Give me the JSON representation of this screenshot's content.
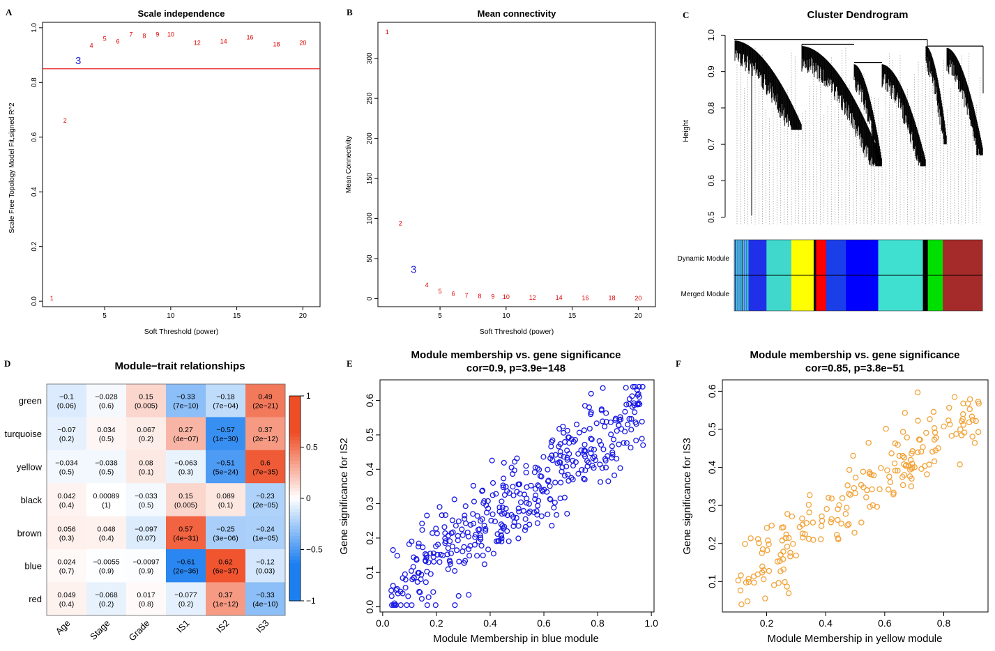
{
  "colors": {
    "axis": "#000000",
    "red_label": "#e00000",
    "blue_highlight": "#2222dd",
    "threshold_line": "#e53030",
    "blue_points": "#1a1ae6",
    "orange_points": "#f2a33a",
    "heat_neg": "#1c7ff0",
    "heat_mid": "#ffffff",
    "heat_pos": "#ef4d26"
  },
  "chart_data": [
    {
      "id": "A",
      "type": "scatter",
      "panel_label": "A",
      "title": "Scale independence",
      "xlabel": "Soft Threshold (power)",
      "ylabel": "Scale Free Topology Model Fit,signed R^2",
      "xlim": [
        0.3,
        21.3
      ],
      "ylim": [
        -0.02,
        1.02
      ],
      "xticks": [
        5,
        10,
        15,
        20
      ],
      "yticks": [
        0.0,
        0.2,
        0.4,
        0.6,
        0.8,
        1.0
      ],
      "ytick_labels": [
        "0.0",
        "0.2",
        "0.4",
        "0.6",
        "0.8",
        "1.0"
      ],
      "hline": 0.85,
      "highlight": "3",
      "points": [
        {
          "label": "1",
          "x": 1,
          "y": 0.01
        },
        {
          "label": "2",
          "x": 2,
          "y": 0.66
        },
        {
          "label": "3",
          "x": 3,
          "y": 0.875
        },
        {
          "label": "4",
          "x": 4,
          "y": 0.935
        },
        {
          "label": "5",
          "x": 5,
          "y": 0.96
        },
        {
          "label": "6",
          "x": 6,
          "y": 0.95
        },
        {
          "label": "7",
          "x": 7,
          "y": 0.975
        },
        {
          "label": "8",
          "x": 8,
          "y": 0.97
        },
        {
          "label": "9",
          "x": 9,
          "y": 0.975
        },
        {
          "label": "10",
          "x": 10,
          "y": 0.975
        },
        {
          "label": "12",
          "x": 12,
          "y": 0.945
        },
        {
          "label": "14",
          "x": 14,
          "y": 0.95
        },
        {
          "label": "16",
          "x": 16,
          "y": 0.965
        },
        {
          "label": "18",
          "x": 18,
          "y": 0.94
        },
        {
          "label": "20",
          "x": 20,
          "y": 0.945
        }
      ]
    },
    {
      "id": "B",
      "type": "scatter",
      "panel_label": "B",
      "title": "Mean connectivity",
      "xlabel": "Soft Threshold (power)",
      "ylabel": "Mean Connectivity",
      "xlim": [
        0.3,
        21.3
      ],
      "ylim": [
        -10,
        345
      ],
      "xticks": [
        5,
        10,
        15,
        20
      ],
      "yticks": [
        0,
        50,
        100,
        150,
        200,
        250,
        300
      ],
      "ytick_labels": [
        "0",
        "50",
        "100",
        "150",
        "200",
        "250",
        "300"
      ],
      "highlight": "3",
      "points": [
        {
          "label": "1",
          "x": 1,
          "y": 333
        },
        {
          "label": "2",
          "x": 2,
          "y": 94
        },
        {
          "label": "3",
          "x": 3,
          "y": 35
        },
        {
          "label": "4",
          "x": 4,
          "y": 17
        },
        {
          "label": "5",
          "x": 5,
          "y": 9
        },
        {
          "label": "6",
          "x": 6,
          "y": 6
        },
        {
          "label": "7",
          "x": 7,
          "y": 4
        },
        {
          "label": "8",
          "x": 8,
          "y": 3
        },
        {
          "label": "9",
          "x": 9,
          "y": 2.5
        },
        {
          "label": "10",
          "x": 10,
          "y": 2
        },
        {
          "label": "12",
          "x": 12,
          "y": 1.5
        },
        {
          "label": "14",
          "x": 14,
          "y": 1.2
        },
        {
          "label": "16",
          "x": 16,
          "y": 1
        },
        {
          "label": "18",
          "x": 18,
          "y": 0.8
        },
        {
          "label": "20",
          "x": 20,
          "y": 0.6
        }
      ]
    },
    {
      "id": "C",
      "type": "dendrogram",
      "panel_label": "C",
      "title": "Cluster Dendrogram",
      "ylabel": "Height",
      "ylim": [
        0.48,
        1.02
      ],
      "yticks": [
        0.5,
        0.6,
        0.7,
        0.8,
        0.9,
        1.0
      ],
      "ytick_labels": [
        "0.5",
        "0.6",
        "0.7",
        "0.8",
        "0.9",
        "1.0"
      ],
      "row_labels": [
        "Dynamic Module",
        "Merged Module"
      ],
      "modules": [
        {
          "name": "turquoise",
          "color": "#3fd1c8",
          "frac": 0.06
        },
        {
          "name": "blue",
          "color": "#2030e8",
          "frac": 0.07
        },
        {
          "name": "turquoise",
          "color": "#40d8cc",
          "frac": 0.1
        },
        {
          "name": "yellow",
          "color": "#ffff00",
          "frac": 0.09
        },
        {
          "name": "black",
          "color": "#111111",
          "frac": 0.01
        },
        {
          "name": "red",
          "color": "#ff0000",
          "frac": 0.04
        },
        {
          "name": "blue",
          "color": "#1a3ee8",
          "frac": 0.08
        },
        {
          "name": "blue",
          "color": "#0000ff",
          "frac": 0.13
        },
        {
          "name": "turquoise",
          "color": "#40e0d0",
          "frac": 0.18
        },
        {
          "name": "black",
          "color": "#000000",
          "frac": 0.02
        },
        {
          "name": "green",
          "color": "#00e000",
          "frac": 0.06
        },
        {
          "name": "brown",
          "color": "#a52a2a",
          "frac": 0.16
        }
      ]
    },
    {
      "id": "D",
      "type": "heatmap",
      "panel_label": "D",
      "title": "Module−trait relationships",
      "rows": [
        "green",
        "turquoise",
        "yellow",
        "black",
        "brown",
        "blue",
        "red"
      ],
      "cols": [
        "Age",
        "Stage",
        "Grade",
        "IS1",
        "IS2",
        "IS3"
      ],
      "values": [
        [
          -0.1,
          -0.028,
          0.15,
          -0.33,
          -0.18,
          0.49
        ],
        [
          -0.07,
          0.034,
          0.067,
          0.27,
          -0.57,
          0.37
        ],
        [
          -0.034,
          -0.038,
          0.08,
          -0.063,
          -0.51,
          0.6
        ],
        [
          0.042,
          0.00089,
          -0.033,
          0.15,
          0.089,
          -0.23
        ],
        [
          0.056,
          0.048,
          -0.097,
          0.57,
          -0.25,
          -0.24
        ],
        [
          0.024,
          -0.0055,
          -0.0097,
          -0.61,
          0.62,
          -0.12
        ],
        [
          0.049,
          -0.068,
          0.017,
          -0.077,
          0.37,
          -0.33
        ]
      ],
      "cell_text": [
        [
          "−0.1",
          "−0.028",
          "0.15",
          "−0.33",
          "−0.18",
          "0.49"
        ],
        [
          "−0.07",
          "0.034",
          "0.067",
          "0.27",
          "−0.57",
          "0.37"
        ],
        [
          "−0.034",
          "−0.038",
          "0.08",
          "−0.063",
          "−0.51",
          "0.6"
        ],
        [
          "0.042",
          "0.00089",
          "−0.033",
          "0.15",
          "0.089",
          "−0.23"
        ],
        [
          "0.056",
          "0.048",
          "−0.097",
          "0.57",
          "−0.25",
          "−0.24"
        ],
        [
          "0.024",
          "−0.0055",
          "−0.0097",
          "−0.61",
          "0.62",
          "−0.12"
        ],
        [
          "0.049",
          "−0.068",
          "0.017",
          "−0.077",
          "0.37",
          "−0.33"
        ]
      ],
      "pvalues": [
        [
          "(0.06)",
          "(0.6)",
          "(0.005)",
          "(7e−10)",
          "(7e−04)",
          "(2e−21)"
        ],
        [
          "(0.2)",
          "(0.5)",
          "(0.2)",
          "(4e−07)",
          "(1e−30)",
          "(2e−12)"
        ],
        [
          "(0.5)",
          "(0.5)",
          "(0.1)",
          "(0.3)",
          "(5e−24)",
          "(7e−35)"
        ],
        [
          "(0.4)",
          "(1)",
          "(0.5)",
          "(0.005)",
          "(0.1)",
          "(2e−05)"
        ],
        [
          "(0.3)",
          "(0.4)",
          "(0.07)",
          "(4e−31)",
          "(3e−06)",
          "(1e−05)"
        ],
        [
          "(0.7)",
          "(0.9)",
          "(0.9)",
          "(2e−36)",
          "(6e−37)",
          "(0.03)"
        ],
        [
          "(0.4)",
          "(0.2)",
          "(0.8)",
          "(0.2)",
          "(1e−12)",
          "(4e−10)"
        ]
      ],
      "colorbar_ticks": [
        1,
        0.5,
        0,
        -0.5,
        -1
      ],
      "colorbar_labels": [
        "1",
        "0.5",
        "0",
        "−0.5",
        "−1"
      ]
    },
    {
      "id": "E",
      "type": "scatter",
      "panel_label": "E",
      "title": "Module membership vs. gene significance",
      "subtitle": "cor=0.9, p=3.9e−148",
      "xlabel": "Module Membership in blue module",
      "ylabel": "Gene significance for IS2",
      "xlim": [
        -0.01,
        1.01
      ],
      "ylim": [
        -0.015,
        0.66
      ],
      "xticks": [
        0.0,
        0.2,
        0.4,
        0.6,
        0.8,
        1.0
      ],
      "xtick_labels": [
        "0.0",
        "0.2",
        "0.4",
        "0.6",
        "0.8",
        "1.0"
      ],
      "yticks": [
        0.0,
        0.1,
        0.2,
        0.3,
        0.4,
        0.5,
        0.6
      ],
      "ytick_labels": [
        "0.0",
        "0.1",
        "0.2",
        "0.3",
        "0.4",
        "0.5",
        "0.6"
      ],
      "point_count": 420,
      "trend": {
        "x_min": 0.03,
        "x_max": 0.97,
        "slope": 0.58,
        "intercept": 0.02,
        "noise": 0.065
      }
    },
    {
      "id": "F",
      "type": "scatter",
      "panel_label": "F",
      "title": "Module membership vs. gene significance",
      "subtitle": "cor=0.85, p=3.8e−51",
      "xlabel": "Module Membership in yellow module",
      "ylabel": "Gene significance for IS3",
      "xlim": [
        0.05,
        0.95
      ],
      "ylim": [
        0.02,
        0.63
      ],
      "xticks": [
        0.2,
        0.4,
        0.6,
        0.8
      ],
      "xtick_labels": [
        "0.2",
        "0.4",
        "0.6",
        "0.8"
      ],
      "yticks": [
        0.1,
        0.2,
        0.3,
        0.4,
        0.5,
        0.6
      ],
      "ytick_labels": [
        "0.1",
        "0.2",
        "0.3",
        "0.4",
        "0.5",
        "0.6"
      ],
      "point_count": 200,
      "trend": {
        "x_min": 0.1,
        "x_max": 0.92,
        "slope": 0.55,
        "intercept": 0.04,
        "noise": 0.055
      }
    }
  ]
}
